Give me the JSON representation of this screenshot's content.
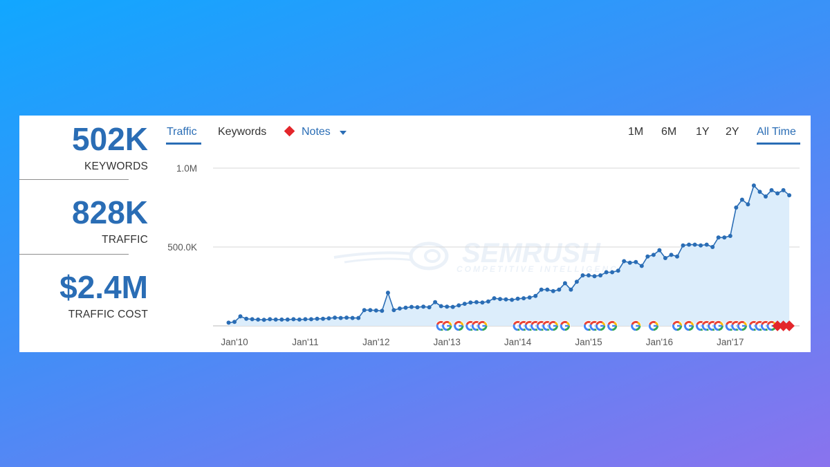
{
  "stats": [
    {
      "value": "502K",
      "label": "KEYWORDS"
    },
    {
      "value": "828K",
      "label": "TRAFFIC"
    },
    {
      "value": "$2.4M",
      "label": "TRAFFIC COST"
    }
  ],
  "tabs": {
    "traffic": "Traffic",
    "keywords": "Keywords",
    "notes": "Notes"
  },
  "periods": [
    "1M",
    "6M",
    "1Y",
    "2Y",
    "All Time"
  ],
  "active_period": "All Time",
  "watermark": {
    "brand": "SEMRUSH",
    "tagline": "COMPETITIVE INTELLIGENCE"
  },
  "colors": {
    "accent": "#2a6db5",
    "line": "#2a6db5",
    "area": "#dcedfb",
    "note": "#e3262b"
  },
  "chart_data": {
    "type": "line",
    "series": [
      {
        "name": "Traffic",
        "points": [
          [
            "2009-12",
            20000
          ],
          [
            "2010-01",
            25000
          ],
          [
            "2010-02",
            60000
          ],
          [
            "2010-03",
            45000
          ],
          [
            "2010-04",
            42000
          ],
          [
            "2010-05",
            40000
          ],
          [
            "2010-06",
            38000
          ],
          [
            "2010-07",
            42000
          ],
          [
            "2010-08",
            40000
          ],
          [
            "2010-09",
            40000
          ],
          [
            "2010-10",
            40000
          ],
          [
            "2010-11",
            42000
          ],
          [
            "2010-12",
            40000
          ],
          [
            "2011-01",
            42000
          ],
          [
            "2011-02",
            42000
          ],
          [
            "2011-03",
            45000
          ],
          [
            "2011-04",
            45000
          ],
          [
            "2011-05",
            48000
          ],
          [
            "2011-06",
            52000
          ],
          [
            "2011-07",
            50000
          ],
          [
            "2011-08",
            52000
          ],
          [
            "2011-09",
            50000
          ],
          [
            "2011-10",
            50000
          ],
          [
            "2011-11",
            100000
          ],
          [
            "2011-12",
            100000
          ],
          [
            "2012-01",
            98000
          ],
          [
            "2012-02",
            95000
          ],
          [
            "2012-03",
            210000
          ],
          [
            "2012-04",
            100000
          ],
          [
            "2012-05",
            110000
          ],
          [
            "2012-06",
            115000
          ],
          [
            "2012-07",
            120000
          ],
          [
            "2012-08",
            118000
          ],
          [
            "2012-09",
            122000
          ],
          [
            "2012-10",
            118000
          ],
          [
            "2012-11",
            150000
          ],
          [
            "2012-12",
            125000
          ],
          [
            "2013-01",
            122000
          ],
          [
            "2013-02",
            120000
          ],
          [
            "2013-03",
            130000
          ],
          [
            "2013-04",
            140000
          ],
          [
            "2013-05",
            148000
          ],
          [
            "2013-06",
            150000
          ],
          [
            "2013-07",
            148000
          ],
          [
            "2013-08",
            155000
          ],
          [
            "2013-09",
            175000
          ],
          [
            "2013-10",
            170000
          ],
          [
            "2013-11",
            168000
          ],
          [
            "2013-12",
            165000
          ],
          [
            "2014-01",
            172000
          ],
          [
            "2014-02",
            175000
          ],
          [
            "2014-03",
            180000
          ],
          [
            "2014-04",
            190000
          ],
          [
            "2014-05",
            230000
          ],
          [
            "2014-06",
            230000
          ],
          [
            "2014-07",
            220000
          ],
          [
            "2014-08",
            230000
          ],
          [
            "2014-09",
            270000
          ],
          [
            "2014-10",
            230000
          ],
          [
            "2014-11",
            280000
          ],
          [
            "2014-12",
            320000
          ],
          [
            "2015-01",
            320000
          ],
          [
            "2015-02",
            315000
          ],
          [
            "2015-03",
            320000
          ],
          [
            "2015-04",
            340000
          ],
          [
            "2015-05",
            340000
          ],
          [
            "2015-06",
            350000
          ],
          [
            "2015-07",
            410000
          ],
          [
            "2015-08",
            400000
          ],
          [
            "2015-09",
            405000
          ],
          [
            "2015-10",
            380000
          ],
          [
            "2015-11",
            440000
          ],
          [
            "2015-12",
            450000
          ],
          [
            "2016-01",
            480000
          ],
          [
            "2016-02",
            430000
          ],
          [
            "2016-03",
            450000
          ],
          [
            "2016-04",
            440000
          ],
          [
            "2016-05",
            510000
          ],
          [
            "2016-06",
            515000
          ],
          [
            "2016-07",
            515000
          ],
          [
            "2016-08",
            510000
          ],
          [
            "2016-09",
            515000
          ],
          [
            "2016-10",
            500000
          ],
          [
            "2016-11",
            560000
          ],
          [
            "2016-12",
            560000
          ],
          [
            "2017-01",
            570000
          ],
          [
            "2017-02",
            750000
          ],
          [
            "2017-03",
            800000
          ],
          [
            "2017-04",
            770000
          ],
          [
            "2017-05",
            890000
          ],
          [
            "2017-06",
            850000
          ],
          [
            "2017-07",
            820000
          ],
          [
            "2017-08",
            860000
          ],
          [
            "2017-09",
            840000
          ],
          [
            "2017-10",
            860000
          ],
          [
            "2017-11",
            828000
          ]
        ]
      }
    ],
    "x_tick_labels": [
      "Jan'10",
      "Jan'11",
      "Jan'12",
      "Jan'13",
      "Jan'14",
      "Jan'15",
      "Jan'16",
      "Jan'17"
    ],
    "x_tick_dates": [
      "2010-01",
      "2011-01",
      "2012-01",
      "2013-01",
      "2014-01",
      "2015-01",
      "2016-01",
      "2017-01"
    ],
    "y_tick_labels": [
      "500.0K",
      "1.0M"
    ],
    "y_tick_values": [
      500000,
      1000000
    ],
    "ylim": [
      0,
      1000000
    ],
    "grid": true,
    "google_update_markers": [
      "2012-12",
      "2013-01",
      "2013-03",
      "2013-05",
      "2013-06",
      "2013-07",
      "2014-01",
      "2014-02",
      "2014-03",
      "2014-04",
      "2014-05",
      "2014-06",
      "2014-07",
      "2014-09",
      "2015-01",
      "2015-02",
      "2015-03",
      "2015-05",
      "2015-09",
      "2015-12",
      "2016-04",
      "2016-06",
      "2016-08",
      "2016-09",
      "2016-10",
      "2016-11",
      "2017-01",
      "2017-02",
      "2017-03",
      "2017-05",
      "2017-06",
      "2017-07",
      "2017-08"
    ],
    "note_markers": [
      "2017-09",
      "2017-10",
      "2017-11"
    ]
  }
}
